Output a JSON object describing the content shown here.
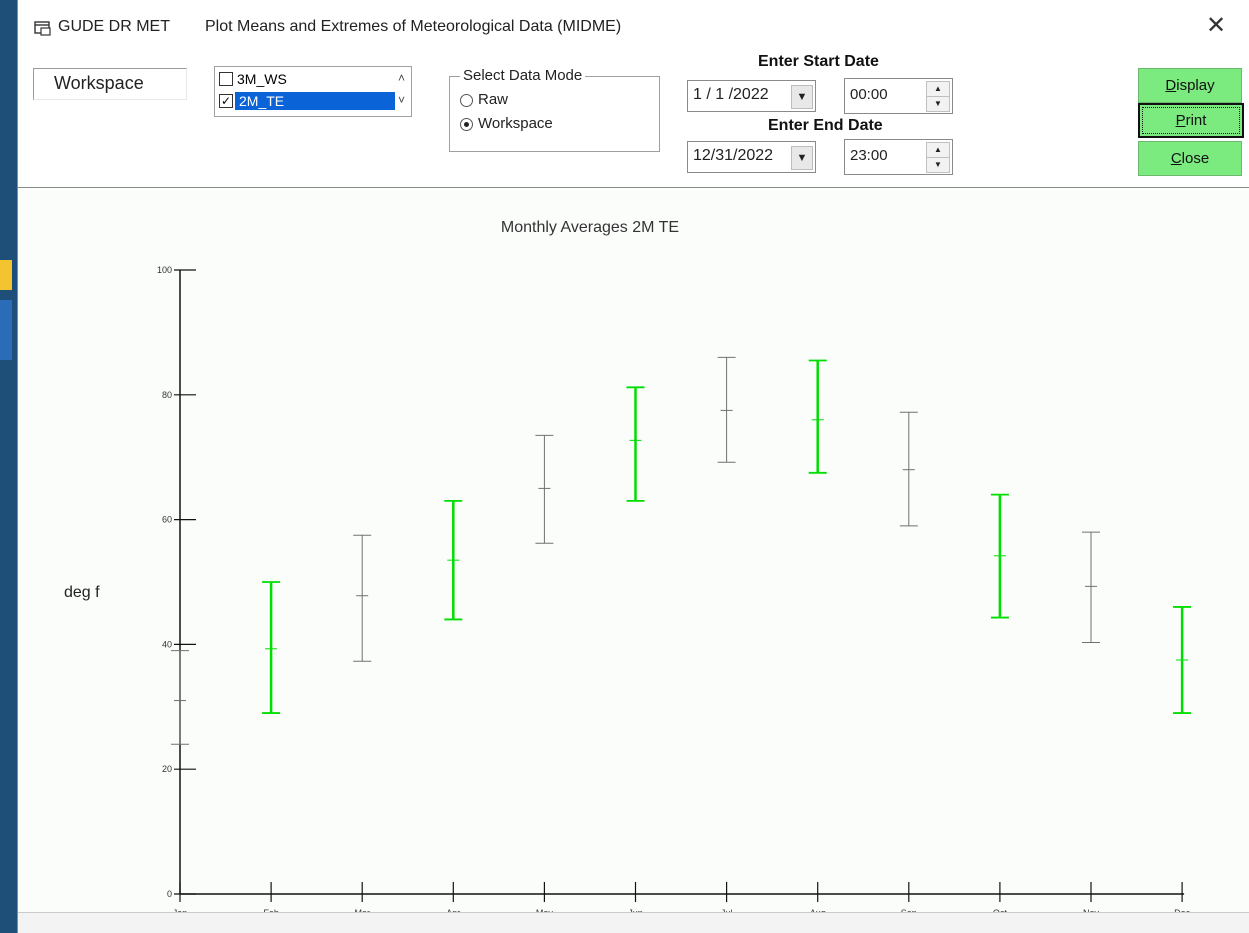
{
  "window": {
    "app_name": "GUDE DR MET",
    "title": "Plot Means and Extremes of Meteorological Data (MIDME)",
    "close_symbol": "✕"
  },
  "workspace_label": "Workspace",
  "variables": [
    {
      "label": "3M_WS",
      "checked": false,
      "selected": false
    },
    {
      "label": "2M_TE",
      "checked": true,
      "selected": true
    }
  ],
  "data_mode": {
    "legend": "Select Data Mode",
    "options": [
      "Raw",
      "Workspace"
    ],
    "selected": "Workspace"
  },
  "start": {
    "header": "Enter Start Date",
    "date": "1 / 1 /2022",
    "time": "00:00"
  },
  "end": {
    "header": "Enter End Date",
    "date": "12/31/2022",
    "time": "23:00"
  },
  "buttons": {
    "display": {
      "first": "D",
      "rest": "isplay"
    },
    "print": {
      "first": "P",
      "rest": "rint"
    },
    "close": {
      "first": "C",
      "rest": "lose"
    }
  },
  "colors": {
    "highlight": "#00dd00",
    "normal": "#707070",
    "button": "#7bea7f"
  },
  "chart_data": {
    "type": "errorbar",
    "title": "Monthly Averages 2M TE",
    "ylabel": "deg f",
    "xlabel": "",
    "ylim": [
      0,
      100
    ],
    "yticks": [
      0,
      20,
      40,
      60,
      80,
      100
    ],
    "categories": [
      "Jan",
      "Feb",
      "Mar",
      "Apr",
      "May",
      "Jun",
      "Jul",
      "Aug",
      "Sep",
      "Oct",
      "Nov",
      "Dec"
    ],
    "min": [
      24.0,
      29.0,
      37.3,
      44.0,
      56.2,
      63.0,
      69.2,
      67.5,
      59.0,
      44.3,
      40.3,
      29.0
    ],
    "mean": [
      31.0,
      39.3,
      47.8,
      53.5,
      65.0,
      72.7,
      77.5,
      76.0,
      68.0,
      54.2,
      49.3,
      37.5
    ],
    "max": [
      39.0,
      50.0,
      57.5,
      63.0,
      73.5,
      81.2,
      86.0,
      85.5,
      77.2,
      64.0,
      58.0,
      46.0
    ],
    "highlighted": [
      false,
      true,
      false,
      true,
      false,
      true,
      false,
      true,
      false,
      true,
      false,
      true
    ],
    "grid": false,
    "legend": "none"
  }
}
